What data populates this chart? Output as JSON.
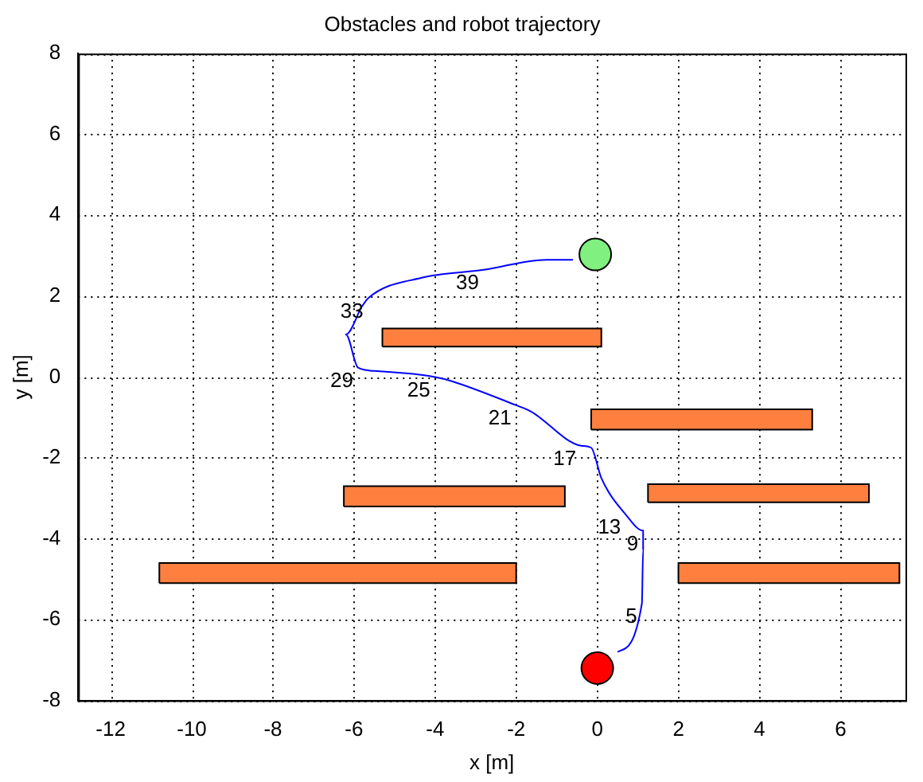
{
  "chart_data": {
    "type": "line",
    "title": "Obstacles and robot trajectory",
    "xlabel": "x [m]",
    "ylabel": "y [m]",
    "xlim": [
      -12.8,
      7.6
    ],
    "xticks": [
      -12,
      -10,
      -8,
      -6,
      -4,
      -2,
      0,
      2,
      4,
      6
    ],
    "ylim": [
      -8,
      8
    ],
    "yticks": [
      -8,
      -6,
      -4,
      -2,
      0,
      2,
      4,
      6,
      8
    ],
    "grid": true,
    "legend": false,
    "series": [
      {
        "type": "area",
        "color": "#ff7f3f",
        "x": [
          -5.3,
          0.1,
          0.1,
          -5.3,
          -5.3
        ],
        "values": [
          0.75,
          0.75,
          1.2,
          1.2,
          0.75
        ]
      },
      {
        "type": "area",
        "color": "#ff7f3f",
        "x": [
          -0.15,
          5.3,
          5.3,
          -0.15,
          -0.15
        ],
        "values": [
          -1.3,
          -1.3,
          -0.8,
          -0.8,
          -1.3
        ]
      },
      {
        "type": "area",
        "color": "#ff7f3f",
        "x": [
          -6.25,
          -0.8,
          -0.8,
          -6.25,
          -6.25
        ],
        "values": [
          -3.2,
          -3.2,
          -2.7,
          -2.7,
          -3.2
        ]
      },
      {
        "type": "area",
        "color": "#ff7f3f",
        "x": [
          1.25,
          6.7,
          6.7,
          1.25,
          1.25
        ],
        "values": [
          -3.1,
          -3.1,
          -2.65,
          -2.65,
          -3.1
        ]
      },
      {
        "type": "area",
        "color": "#ff7f3f",
        "x": [
          -10.8,
          -2.0,
          -2.0,
          -10.8,
          -10.8
        ],
        "values": [
          -5.1,
          -5.1,
          -4.6,
          -4.6,
          -5.1
        ]
      },
      {
        "type": "area",
        "color": "#ff7f3f",
        "x": [
          2.0,
          7.45,
          7.45,
          2.0,
          2.0
        ],
        "values": [
          -5.1,
          -5.1,
          -4.6,
          -4.6,
          -5.1
        ]
      },
      {
        "color": "#0000ff",
        "marker": "none",
        "x": [
          0.5,
          1.1,
          1.13,
          1.13,
          0.7,
          0.1,
          -0.15,
          -0.4,
          -1.64,
          -2.0,
          -3.6,
          -4.0,
          -5.5,
          -5.9,
          -6.2,
          -5.8,
          -5.65,
          -4.35,
          -2.8,
          -1.25,
          -0.6
        ],
        "values": [
          -6.8,
          -5.6,
          -4.27,
          -3.8,
          -3.4,
          -2.5,
          -1.75,
          -1.7,
          -0.85,
          -0.7,
          -0.1,
          0.0,
          0.15,
          0.23,
          1.05,
          1.75,
          1.95,
          2.45,
          2.65,
          2.9,
          2.9
        ]
      },
      {
        "type": "scatter",
        "color": "#ff0000",
        "marker": "circle",
        "x": [
          0
        ],
        "values": [
          -7.2
        ]
      },
      {
        "type": "scatter",
        "color": "#80f080",
        "marker": "circle",
        "x": [
          -0.05
        ],
        "values": [
          3.03
        ]
      }
    ],
    "annotations": [
      {
        "text": "5",
        "x": 1.1,
        "y": -5.6
      },
      {
        "text": "9",
        "x": 1.13,
        "y": -3.8
      },
      {
        "text": "13",
        "x": 0.7,
        "y": -3.4
      },
      {
        "text": "17",
        "x": -0.4,
        "y": -1.7
      },
      {
        "text": "21",
        "x": -2.0,
        "y": -0.7
      },
      {
        "text": "25",
        "x": -4.0,
        "y": 0.0
      },
      {
        "text": "29",
        "x": -5.9,
        "y": 0.23
      },
      {
        "text": "33",
        "x": -5.65,
        "y": 1.95
      },
      {
        "text": "39",
        "x": -2.8,
        "y": 2.65
      }
    ]
  }
}
